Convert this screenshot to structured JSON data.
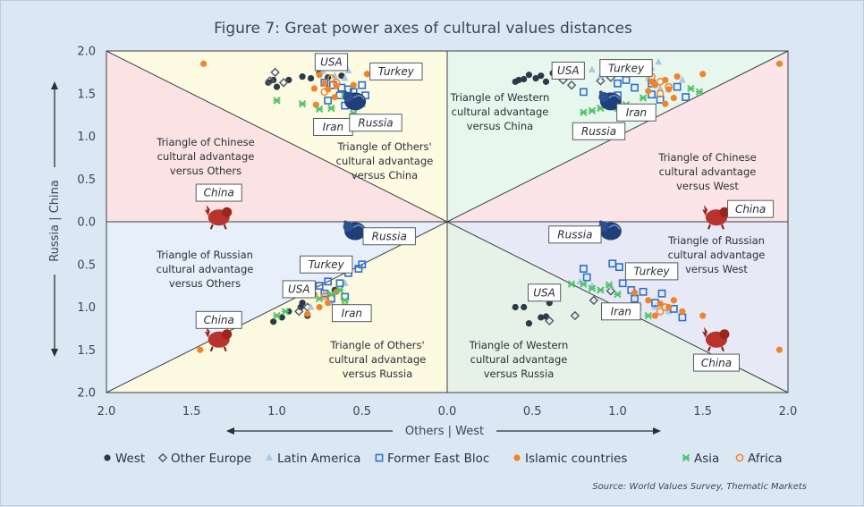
{
  "chart_data": {
    "type": "scatter",
    "title": "Figure 7: Great power axes of cultural values distances",
    "xlabel": "Others | West",
    "ylabel": "Russia | China",
    "x_ticks": [
      "2.0",
      "1.5",
      "1.0",
      "0.5",
      "0.0",
      "0.5",
      "1.0",
      "1.5",
      "2.0"
    ],
    "y_ticks": [
      "2.0",
      "1.5",
      "1.0",
      "0.5",
      "0.0",
      "0.5",
      "1.0",
      "1.5",
      "2.0"
    ],
    "xlim": [
      -2,
      2
    ],
    "ylim": [
      -2,
      2
    ],
    "source": "Source: World Values Survey, Thematic Markets",
    "colors": {
      "west": "#2b3a4a",
      "other_europe": "#55606e",
      "latin_america": "#a9c7e6",
      "former_east_bloc": "#2f6fd0",
      "islamic": "#f0842a",
      "asia": "#52c36b",
      "africa": "#f0842a",
      "china_icon": "#b8332b",
      "russia_icon": "#1f3f7a"
    },
    "zones": [
      {
        "id": "tl-red",
        "lines": [
          "Triangle of Chinese",
          "cultural advantage",
          "versus Others"
        ]
      },
      {
        "id": "tl-yellow",
        "lines": [
          "Triangle of Others'",
          "cultural advantage",
          "versus China"
        ]
      },
      {
        "id": "tr-green",
        "lines": [
          "Triangle of Western",
          "cultural advantage",
          "versus China"
        ]
      },
      {
        "id": "tr-red",
        "lines": [
          "Triangle of Chinese",
          "cultural advantage",
          "versus West"
        ]
      },
      {
        "id": "bl-blue",
        "lines": [
          "Triangle of Russian",
          "cultural advantage",
          "versus Others"
        ]
      },
      {
        "id": "bl-yellow",
        "lines": [
          "Triangle of Others'",
          "cultural advantage",
          "versus Russia"
        ]
      },
      {
        "id": "br-green",
        "lines": [
          "Triangle of Western",
          "cultural advantage",
          "versus Russia"
        ]
      },
      {
        "id": "br-blue",
        "lines": [
          "Triangle of Russian",
          "cultural advantage",
          "versus West"
        ]
      }
    ],
    "anchors": [
      {
        "name": "China",
        "x": -1.34,
        "y": 0.05
      },
      {
        "name": "China",
        "x": 1.58,
        "y": 0.05
      },
      {
        "name": "China",
        "x": -1.34,
        "y": -1.38
      },
      {
        "name": "China",
        "x": 1.58,
        "y": -1.38
      },
      {
        "name": "Russia",
        "x": -0.54,
        "y": 1.41
      },
      {
        "name": "Russia",
        "x": 0.96,
        "y": 1.41
      },
      {
        "name": "Russia",
        "x": -0.54,
        "y": -0.11
      },
      {
        "name": "Russia",
        "x": 0.96,
        "y": -0.11
      }
    ],
    "callouts": [
      {
        "text": "USA",
        "x": -0.68,
        "y": 1.87
      },
      {
        "text": "Turkey",
        "x": -0.3,
        "y": 1.76
      },
      {
        "text": "Iran",
        "x": -0.67,
        "y": 1.11
      },
      {
        "text": "Russia",
        "x": -0.42,
        "y": 1.16
      },
      {
        "text": "China",
        "x": -1.34,
        "y": 0.34
      },
      {
        "text": "Russia",
        "x": -0.34,
        "y": -0.17
      },
      {
        "text": "USA",
        "x": 0.71,
        "y": 1.77
      },
      {
        "text": "Turkey",
        "x": 1.05,
        "y": 1.8
      },
      {
        "text": "Iran",
        "x": 1.11,
        "y": 1.28
      },
      {
        "text": "Russia",
        "x": 0.89,
        "y": 1.06
      },
      {
        "text": "China",
        "x": 1.78,
        "y": 0.15
      },
      {
        "text": "Russia",
        "x": 0.75,
        "y": -0.15
      },
      {
        "text": "Turkey",
        "x": -0.71,
        "y": -0.5
      },
      {
        "text": "USA",
        "x": -0.87,
        "y": -0.79
      },
      {
        "text": "Iran",
        "x": -0.56,
        "y": -1.07
      },
      {
        "text": "China",
        "x": -1.34,
        "y": -1.15
      },
      {
        "text": "USA",
        "x": 0.57,
        "y": -0.83
      },
      {
        "text": "Turkey",
        "x": 1.2,
        "y": -0.58
      },
      {
        "text": "Iran",
        "x": 1.02,
        "y": -1.05
      },
      {
        "text": "China",
        "x": 1.58,
        "y": -1.65
      }
    ],
    "legend": [
      {
        "key": "west",
        "label": "West"
      },
      {
        "key": "other_europe",
        "label": "Other Europe"
      },
      {
        "key": "latin_america",
        "label": "Latin America"
      },
      {
        "key": "former_east_bloc",
        "label": "Former East Bloc"
      },
      {
        "key": "islamic",
        "label": "Islamic countries"
      },
      {
        "key": "asia",
        "label": "Asia"
      },
      {
        "key": "africa",
        "label": "Africa"
      }
    ],
    "series": [
      {
        "name": "West",
        "key": "west",
        "points": [
          [
            -0.85,
            1.7
          ],
          [
            -1.02,
            1.66
          ],
          [
            -1.05,
            1.63
          ],
          [
            -0.93,
            1.66
          ],
          [
            -0.62,
            1.71
          ],
          [
            -0.7,
            1.69
          ],
          [
            -1.0,
            1.58
          ],
          [
            -0.8,
            1.68
          ],
          [
            -0.75,
            1.74
          ],
          [
            0.42,
            1.66
          ],
          [
            0.45,
            1.67
          ],
          [
            0.52,
            1.68
          ],
          [
            0.58,
            1.64
          ],
          [
            0.48,
            1.72
          ],
          [
            0.62,
            1.74
          ],
          [
            0.55,
            1.71
          ],
          [
            0.4,
            1.64
          ],
          [
            -0.97,
            -1.12
          ],
          [
            -1.02,
            -1.17
          ],
          [
            -0.93,
            -1.05
          ],
          [
            -0.86,
            -1.0
          ],
          [
            -0.82,
            -1.1
          ],
          [
            -0.66,
            -0.8
          ],
          [
            -0.85,
            -0.95
          ],
          [
            0.4,
            -1.0
          ],
          [
            0.45,
            -1.0
          ],
          [
            0.48,
            -1.19
          ],
          [
            0.55,
            -1.12
          ],
          [
            0.58,
            -1.11
          ],
          [
            0.6,
            -0.95
          ]
        ]
      },
      {
        "name": "Other Europe",
        "key": "other_europe",
        "points": [
          [
            -1.01,
            1.75
          ],
          [
            -1.04,
            1.65
          ],
          [
            -0.96,
            1.63
          ],
          [
            0.68,
            1.66
          ],
          [
            0.9,
            1.65
          ],
          [
            0.73,
            1.6
          ],
          [
            0.96,
            1.69
          ],
          [
            -0.82,
            -1.0
          ],
          [
            -0.87,
            -1.05
          ],
          [
            0.6,
            -1.16
          ],
          [
            0.75,
            -1.1
          ],
          [
            0.96,
            -0.81
          ],
          [
            0.86,
            -0.92
          ]
        ]
      },
      {
        "name": "Latin America",
        "key": "latin_america",
        "points": [
          [
            -0.73,
            1.76
          ],
          [
            -0.66,
            1.71
          ],
          [
            -0.58,
            1.77
          ],
          [
            -0.6,
            1.68
          ],
          [
            0.85,
            1.78
          ],
          [
            0.9,
            1.71
          ],
          [
            1.08,
            1.86
          ],
          [
            1.15,
            1.85
          ],
          [
            1.2,
            1.8
          ],
          [
            1.24,
            1.87
          ],
          [
            1.18,
            1.68
          ],
          [
            1.25,
            1.56
          ],
          [
            1.38,
            1.66
          ],
          [
            -0.6,
            -0.72
          ],
          [
            -0.72,
            -0.85
          ],
          [
            -0.68,
            -0.95
          ],
          [
            -0.8,
            -1.0
          ],
          [
            0.78,
            -0.7
          ],
          [
            0.85,
            -0.75
          ],
          [
            0.96,
            -0.75
          ],
          [
            1.1,
            -0.85
          ],
          [
            1.22,
            -1.0
          ],
          [
            1.3,
            -1.05
          ]
        ]
      },
      {
        "name": "Former East Bloc",
        "key": "former_east_bloc",
        "points": [
          [
            -0.67,
            1.6
          ],
          [
            -0.62,
            1.57
          ],
          [
            -0.55,
            1.52
          ],
          [
            -0.63,
            1.48
          ],
          [
            -0.58,
            1.55
          ],
          [
            -0.5,
            1.6
          ],
          [
            -0.48,
            1.48
          ],
          [
            -0.55,
            1.43
          ],
          [
            -0.7,
            1.42
          ],
          [
            -0.6,
            1.36
          ],
          [
            -0.72,
            1.63
          ],
          [
            0.8,
            1.52
          ],
          [
            0.92,
            1.45
          ],
          [
            0.98,
            1.42
          ],
          [
            1.0,
            1.48
          ],
          [
            1.0,
            1.62
          ],
          [
            1.05,
            1.66
          ],
          [
            1.2,
            1.62
          ],
          [
            1.25,
            1.43
          ],
          [
            1.2,
            1.49
          ],
          [
            1.35,
            1.58
          ],
          [
            1.4,
            1.46
          ],
          [
            1.1,
            1.57
          ],
          [
            -0.5,
            -0.5
          ],
          [
            -0.52,
            -0.55
          ],
          [
            -0.58,
            -0.6
          ],
          [
            -0.63,
            -0.72
          ],
          [
            -0.7,
            -0.7
          ],
          [
            -0.75,
            -0.75
          ],
          [
            -0.72,
            -0.84
          ],
          [
            -0.68,
            -0.9
          ],
          [
            -0.6,
            -0.88
          ],
          [
            0.8,
            -0.55
          ],
          [
            0.82,
            -0.65
          ],
          [
            0.97,
            -0.49
          ],
          [
            1.01,
            -0.53
          ],
          [
            1.03,
            -0.72
          ],
          [
            1.08,
            -0.8
          ],
          [
            1.1,
            -0.9
          ],
          [
            1.15,
            -0.82
          ],
          [
            1.26,
            -0.84
          ],
          [
            1.33,
            -1.02
          ],
          [
            1.38,
            -1.12
          ],
          [
            1.22,
            -0.95
          ]
        ]
      },
      {
        "name": "Islamic countries",
        "key": "islamic",
        "points": [
          [
            -1.43,
            1.85
          ],
          [
            -0.75,
            1.72
          ],
          [
            -0.72,
            1.62
          ],
          [
            -0.65,
            1.59
          ],
          [
            -0.7,
            1.55
          ],
          [
            -0.78,
            1.56
          ],
          [
            -0.55,
            1.6
          ],
          [
            -0.47,
            1.73
          ],
          [
            -0.66,
            1.46
          ],
          [
            -0.77,
            1.37
          ],
          [
            1.2,
            1.64
          ],
          [
            1.28,
            1.66
          ],
          [
            1.35,
            1.7
          ],
          [
            1.18,
            1.53
          ],
          [
            1.22,
            1.6
          ],
          [
            1.3,
            1.55
          ],
          [
            1.33,
            1.45
          ],
          [
            1.28,
            1.38
          ],
          [
            1.5,
            1.73
          ],
          [
            1.95,
            1.85
          ],
          [
            -1.45,
            -1.5
          ],
          [
            -0.86,
            -0.8
          ],
          [
            -0.78,
            -0.85
          ],
          [
            -0.7,
            -0.95
          ],
          [
            -0.75,
            -1.0
          ],
          [
            -0.82,
            -1.08
          ],
          [
            -0.65,
            -0.82
          ],
          [
            -0.58,
            -1.03
          ],
          [
            1.1,
            -0.83
          ],
          [
            1.18,
            -0.92
          ],
          [
            1.25,
            -0.96
          ],
          [
            1.3,
            -1.0
          ],
          [
            1.33,
            -0.92
          ],
          [
            1.38,
            -1.05
          ],
          [
            1.5,
            -1.1
          ],
          [
            1.22,
            -1.1
          ],
          [
            1.95,
            -1.5
          ]
        ]
      },
      {
        "name": "Asia",
        "key": "asia",
        "points": [
          [
            -1.0,
            1.42
          ],
          [
            -0.85,
            1.38
          ],
          [
            -0.75,
            1.32
          ],
          [
            -0.68,
            1.33
          ],
          [
            -0.6,
            1.47
          ],
          [
            -0.5,
            1.38
          ],
          [
            -0.55,
            1.27
          ],
          [
            0.8,
            1.28
          ],
          [
            0.85,
            1.3
          ],
          [
            0.9,
            1.33
          ],
          [
            0.95,
            1.38
          ],
          [
            1.0,
            1.33
          ],
          [
            1.05,
            1.37
          ],
          [
            1.15,
            1.45
          ],
          [
            1.43,
            1.56
          ],
          [
            1.48,
            1.52
          ],
          [
            -1.0,
            -1.1
          ],
          [
            -0.95,
            -1.05
          ],
          [
            -0.75,
            -0.9
          ],
          [
            -0.68,
            -0.85
          ],
          [
            -0.63,
            -0.8
          ],
          [
            -0.6,
            -0.92
          ],
          [
            0.73,
            -0.73
          ],
          [
            0.8,
            -0.73
          ],
          [
            0.85,
            -0.78
          ],
          [
            0.9,
            -0.8
          ],
          [
            0.95,
            -0.74
          ],
          [
            1.0,
            -0.85
          ],
          [
            1.12,
            -1.0
          ],
          [
            1.18,
            -1.1
          ]
        ]
      },
      {
        "name": "Africa",
        "key": "africa",
        "points": [
          [
            -0.68,
            1.68
          ],
          [
            -0.65,
            1.63
          ],
          [
            -0.72,
            1.52
          ],
          [
            1.15,
            1.74
          ],
          [
            1.2,
            1.7
          ],
          [
            1.25,
            1.64
          ],
          [
            1.3,
            1.58
          ],
          [
            1.25,
            1.5
          ],
          [
            -0.72,
            -0.87
          ],
          [
            -0.6,
            -1.0
          ],
          [
            1.25,
            -1.05
          ],
          [
            1.28,
            -1.0
          ]
        ]
      }
    ]
  }
}
